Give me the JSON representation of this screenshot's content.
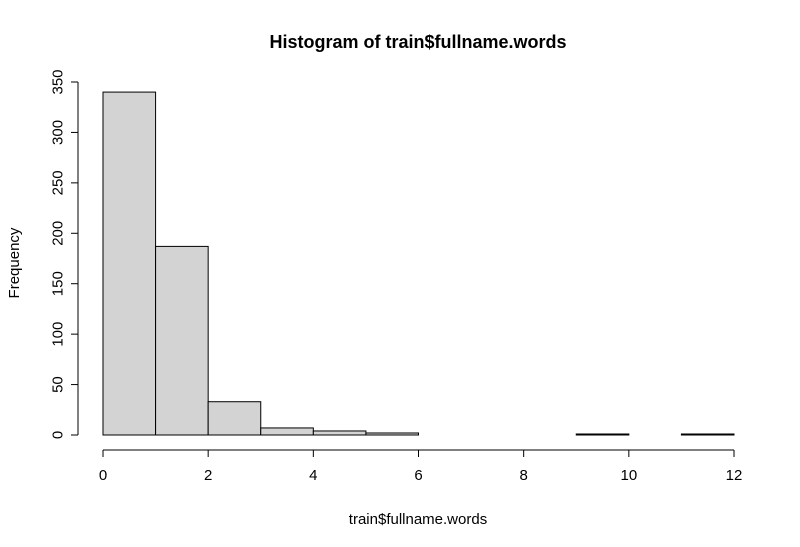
{
  "chart_data": {
    "type": "bar",
    "title": "Histogram of train$fullname.words",
    "xlabel": "train$fullname.words",
    "ylabel": "Frequency",
    "bins": [
      {
        "from": 0,
        "to": 1,
        "count": 340
      },
      {
        "from": 1,
        "to": 2,
        "count": 187
      },
      {
        "from": 2,
        "to": 3,
        "count": 33
      },
      {
        "from": 3,
        "to": 4,
        "count": 7
      },
      {
        "from": 4,
        "to": 5,
        "count": 4
      },
      {
        "from": 5,
        "to": 6,
        "count": 2
      },
      {
        "from": 6,
        "to": 7,
        "count": 0
      },
      {
        "from": 7,
        "to": 8,
        "count": 0
      },
      {
        "from": 8,
        "to": 9,
        "count": 0
      },
      {
        "from": 9,
        "to": 10,
        "count": 1
      },
      {
        "from": 10,
        "to": 11,
        "count": 0
      },
      {
        "from": 11,
        "to": 12,
        "count": 1
      }
    ],
    "xlim": [
      0,
      12
    ],
    "ylim": [
      0,
      350
    ],
    "x_ticks": [
      "0",
      "2",
      "4",
      "6",
      "8",
      "10",
      "12"
    ],
    "y_ticks": [
      "0",
      "50",
      "100",
      "150",
      "200",
      "250",
      "300",
      "350"
    ],
    "grid": false,
    "bar_color": "#d3d3d3",
    "bar_border_color": "#000000"
  }
}
